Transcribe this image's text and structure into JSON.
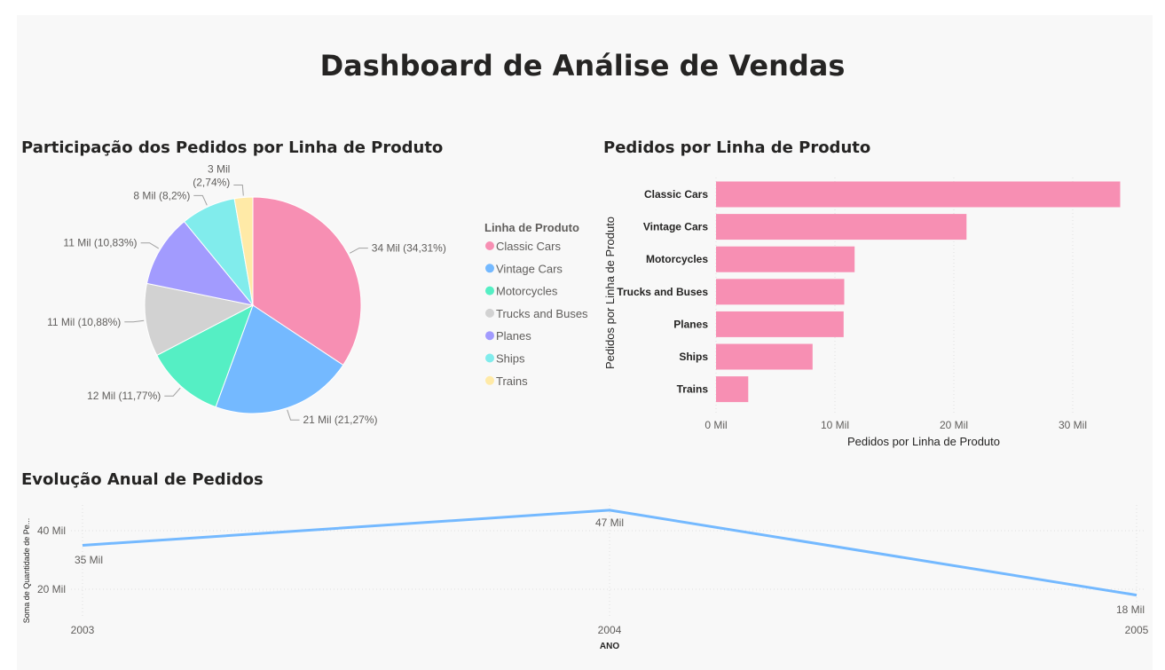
{
  "dashboard_title": "Dashboard de Análise de Vendas",
  "colors": {
    "classic_cars": "#f78fb3",
    "vintage_cars": "#74b9ff",
    "motorcycles": "#55efc4",
    "trucks_buses": "#d2d2d2",
    "planes": "#a29bfe",
    "ships": "#81ecec",
    "trains": "#ffeaa7",
    "bar": "#f78fb3",
    "line": "#74b9ff"
  },
  "chart_data": [
    {
      "type": "pie",
      "title": "Participação dos Pedidos por Linha de Produto",
      "legend_title": "Linha de Produto",
      "legend_position": "right",
      "slices": [
        {
          "label": "Classic Cars",
          "value": 34.31,
          "data_label": "34 Mil (34,31%)",
          "color": "#f78fb3"
        },
        {
          "label": "Vintage Cars",
          "value": 21.27,
          "data_label": "21 Mil (21,27%)",
          "color": "#74b9ff"
        },
        {
          "label": "Motorcycles",
          "value": 11.77,
          "data_label": "12 Mil (11,77%)",
          "color": "#55efc4"
        },
        {
          "label": "Trucks and Buses",
          "value": 10.88,
          "data_label": "11 Mil (10,88%)",
          "color": "#d2d2d2"
        },
        {
          "label": "Planes",
          "value": 10.83,
          "data_label": "11 Mil (10,83%)",
          "color": "#a29bfe"
        },
        {
          "label": "Ships",
          "value": 8.2,
          "data_label": "8 Mil (8,2%)",
          "color": "#81ecec"
        },
        {
          "label": "Trains",
          "value": 2.74,
          "data_label": "3 Mil",
          "data_label_2": "(2,74%)",
          "color": "#ffeaa7"
        }
      ]
    },
    {
      "type": "bar",
      "orientation": "horizontal",
      "title": "Pedidos por Linha de Produto",
      "xlabel": "Pedidos por Linha de Produto",
      "ylabel": "Pedidos por Linha de Produto",
      "categories": [
        "Classic Cars",
        "Vintage Cars",
        "Motorcycles",
        "Trucks and Buses",
        "Planes",
        "Ships",
        "Trains"
      ],
      "values": [
        33990,
        21070,
        11660,
        10780,
        10730,
        8120,
        2710
      ],
      "xlim": [
        0,
        35000
      ],
      "xticks": [
        0,
        10000,
        20000,
        30000
      ],
      "xtick_labels": [
        "0 Mil",
        "10 Mil",
        "20 Mil",
        "30 Mil"
      ],
      "grid": true
    },
    {
      "type": "line",
      "title": "Evolução Anual de Pedidos",
      "xlabel": "ANO",
      "ylabel": "Soma de Quantidade de Pe...",
      "x": [
        "2003",
        "2004",
        "2005"
      ],
      "values": [
        35000,
        47000,
        18000
      ],
      "data_labels": [
        "35 Mil",
        "47 Mil",
        "18 Mil"
      ],
      "yticks": [
        20000,
        40000
      ],
      "ytick_labels": [
        "20 Mil",
        "40 Mil"
      ],
      "ylim": [
        15000,
        50000
      ],
      "grid": true
    }
  ]
}
